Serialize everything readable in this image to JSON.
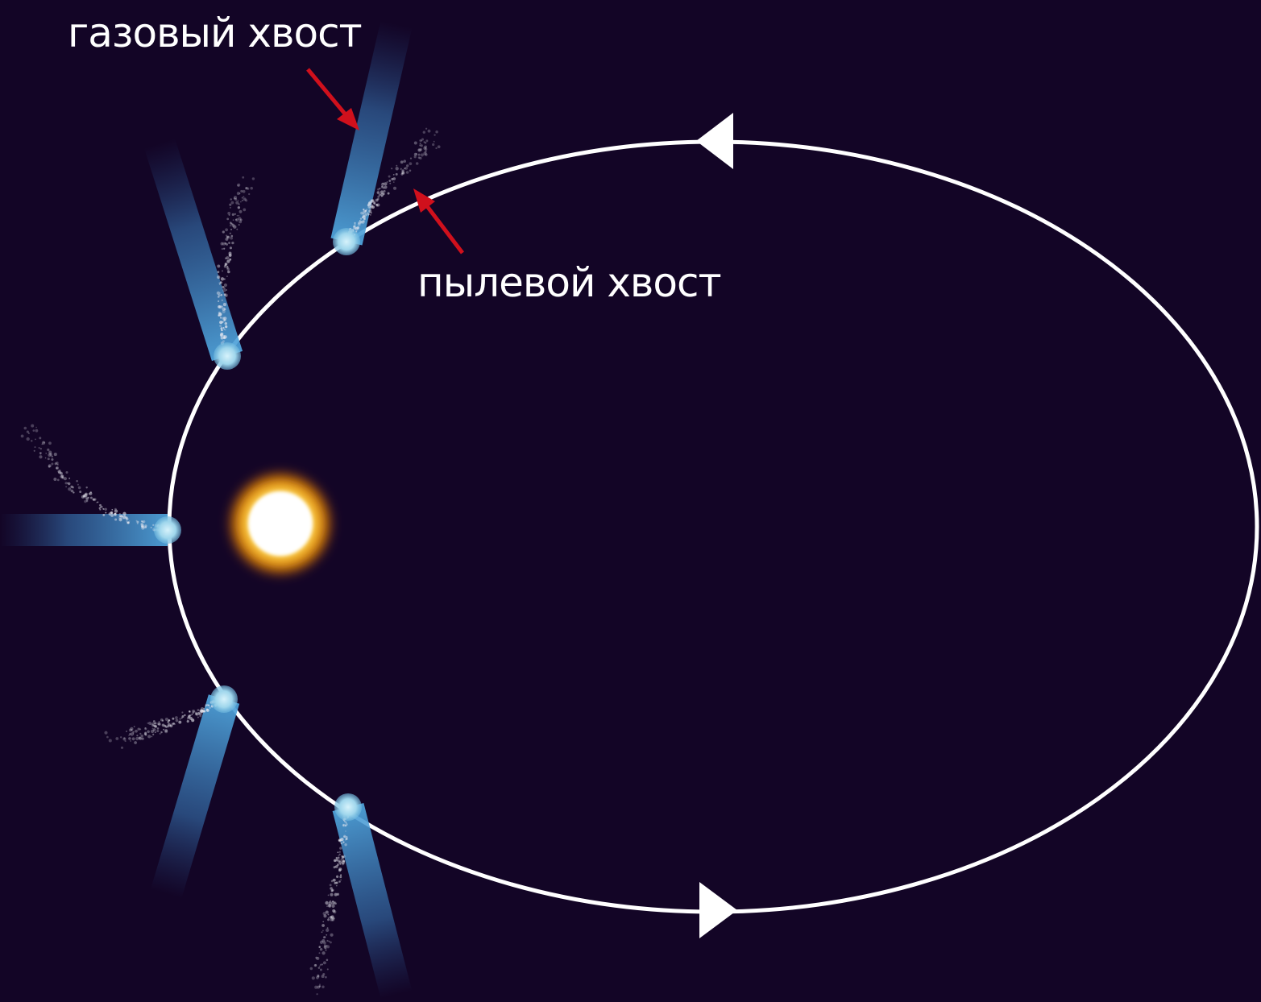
{
  "labels": {
    "gas_tail": "газовый хвост",
    "dust_tail": "пылевой хвост"
  },
  "colors": {
    "background": "#130526",
    "orbit": "#ffffff",
    "gas_tail": "#4a9fd8",
    "nucleus": "#a8dcef",
    "dust": "#e8e8f0",
    "pointer_arrow": "#d0101c",
    "sun_core": "#ffffff",
    "sun_glow": "#ffb000"
  },
  "diagram": {
    "subject": "comet orbit around the sun",
    "comet_positions": 5,
    "orbit_direction": "counterclockwise"
  }
}
